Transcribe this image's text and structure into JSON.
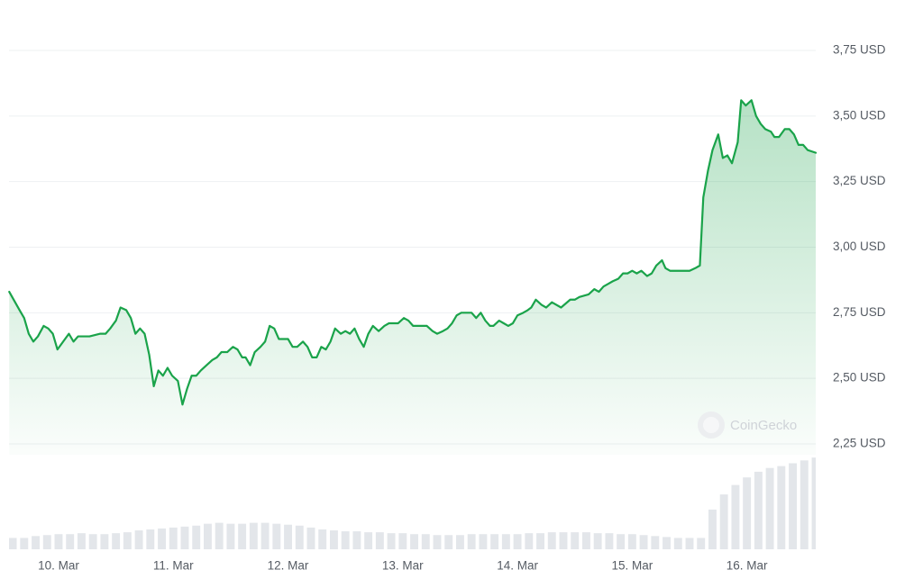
{
  "chart_data": [
    {
      "type": "line",
      "color": "#1aa34a",
      "grid": true,
      "annotation": "CoinGecko",
      "xlim": [
        9.568,
        16.6
      ],
      "ylim": [
        2.25,
        3.75
      ],
      "yticks": [
        {
          "value": 2.25,
          "label": "2,25 USD"
        },
        {
          "value": 2.5,
          "label": "2,50 USD"
        },
        {
          "value": 2.75,
          "label": "2,75 USD"
        },
        {
          "value": 3.0,
          "label": "3,00 USD"
        },
        {
          "value": 3.25,
          "label": "3,25 USD"
        },
        {
          "value": 3.5,
          "label": "3,50 USD"
        },
        {
          "value": 3.75,
          "label": "3,75 USD"
        }
      ],
      "xticks": [
        {
          "value": 10,
          "label": "10. Mar"
        },
        {
          "value": 11,
          "label": "11. Mar"
        },
        {
          "value": 12,
          "label": "12. Mar"
        },
        {
          "value": 13,
          "label": "13. Mar"
        },
        {
          "value": 14,
          "label": "14. Mar"
        },
        {
          "value": 15,
          "label": "15. Mar"
        },
        {
          "value": 16,
          "label": "16. Mar"
        }
      ],
      "x": [
        9.57,
        9.66,
        9.7,
        9.74,
        9.78,
        9.82,
        9.87,
        9.91,
        9.95,
        9.99,
        10.04,
        10.09,
        10.13,
        10.17,
        10.27,
        10.36,
        10.41,
        10.45,
        10.5,
        10.54,
        10.59,
        10.63,
        10.67,
        10.71,
        10.75,
        10.79,
        10.83,
        10.87,
        10.91,
        10.95,
        10.99,
        11.04,
        11.08,
        11.12,
        11.16,
        11.2,
        11.24,
        11.29,
        11.34,
        11.38,
        11.42,
        11.47,
        11.52,
        11.56,
        11.6,
        11.63,
        11.67,
        11.71,
        11.76,
        11.8,
        11.84,
        11.88,
        11.92,
        12.0,
        12.04,
        12.08,
        12.13,
        12.17,
        12.21,
        12.25,
        12.29,
        12.33,
        12.37,
        12.41,
        12.46,
        12.5,
        12.54,
        12.58,
        12.62,
        12.66,
        12.7,
        12.74,
        12.79,
        12.84,
        12.88,
        12.96,
        13.01,
        13.05,
        13.09,
        13.17,
        13.21,
        13.26,
        13.3,
        13.35,
        13.39,
        13.43,
        13.47,
        13.51,
        13.6,
        13.64,
        13.68,
        13.72,
        13.76,
        13.79,
        13.84,
        13.88,
        13.92,
        13.96,
        14.0,
        14.05,
        14.09,
        14.12,
        14.16,
        14.21,
        14.25,
        14.3,
        14.38,
        14.46,
        14.5,
        14.54,
        14.62,
        14.67,
        14.71,
        14.75,
        14.79,
        14.83,
        14.88,
        14.92,
        14.96,
        15.0,
        15.04,
        15.08,
        15.13,
        15.17,
        15.21,
        15.26,
        15.29,
        15.33,
        15.37,
        15.41,
        15.5,
        15.55,
        15.59,
        15.62,
        15.66,
        15.7,
        15.75,
        15.79,
        15.83,
        15.87,
        15.92,
        15.95,
        15.99,
        16.04,
        16.08,
        16.12,
        16.16,
        16.21,
        16.24,
        16.28,
        16.33,
        16.37,
        16.41,
        16.45,
        16.49,
        16.53,
        16.6
      ],
      "values": [
        2.83,
        2.76,
        2.73,
        2.67,
        2.64,
        2.66,
        2.7,
        2.69,
        2.67,
        2.61,
        2.64,
        2.67,
        2.64,
        2.66,
        2.66,
        2.67,
        2.67,
        2.69,
        2.72,
        2.77,
        2.76,
        2.73,
        2.67,
        2.69,
        2.67,
        2.59,
        2.47,
        2.53,
        2.51,
        2.54,
        2.51,
        2.49,
        2.4,
        2.46,
        2.51,
        2.51,
        2.53,
        2.55,
        2.57,
        2.58,
        2.6,
        2.6,
        2.62,
        2.61,
        2.58,
        2.58,
        2.55,
        2.6,
        2.62,
        2.64,
        2.7,
        2.69,
        2.65,
        2.65,
        2.62,
        2.62,
        2.64,
        2.62,
        2.58,
        2.58,
        2.62,
        2.61,
        2.64,
        2.69,
        2.67,
        2.68,
        2.67,
        2.69,
        2.65,
        2.62,
        2.67,
        2.7,
        2.68,
        2.7,
        2.71,
        2.71,
        2.73,
        2.72,
        2.7,
        2.7,
        2.7,
        2.68,
        2.67,
        2.68,
        2.69,
        2.71,
        2.74,
        2.75,
        2.75,
        2.73,
        2.75,
        2.72,
        2.7,
        2.7,
        2.72,
        2.71,
        2.7,
        2.71,
        2.74,
        2.75,
        2.76,
        2.77,
        2.8,
        2.78,
        2.77,
        2.79,
        2.77,
        2.8,
        2.8,
        2.81,
        2.82,
        2.84,
        2.83,
        2.85,
        2.86,
        2.87,
        2.88,
        2.9,
        2.9,
        2.91,
        2.9,
        2.91,
        2.89,
        2.9,
        2.93,
        2.95,
        2.92,
        2.91,
        2.91,
        2.91,
        2.91,
        2.92,
        2.93,
        3.19,
        3.29,
        3.37,
        3.43,
        3.34,
        3.35,
        3.32,
        3.4,
        3.56,
        3.54,
        3.56,
        3.5,
        3.47,
        3.45,
        3.44,
        3.42,
        3.42,
        3.45,
        3.45,
        3.43,
        3.39,
        3.39,
        3.37,
        3.36
      ]
    },
    {
      "type": "bar",
      "color": "#e3e6ea",
      "xlim": [
        9.568,
        16.6
      ],
      "ylim": [
        0,
        100
      ],
      "x": [
        9.6,
        9.7,
        9.8,
        9.9,
        10.0,
        10.1,
        10.2,
        10.3,
        10.4,
        10.5,
        10.6,
        10.7,
        10.8,
        10.9,
        11.0,
        11.1,
        11.2,
        11.3,
        11.4,
        11.5,
        11.6,
        11.7,
        11.8,
        11.9,
        12.0,
        12.1,
        12.2,
        12.3,
        12.4,
        12.5,
        12.6,
        12.7,
        12.8,
        12.9,
        13.0,
        13.1,
        13.2,
        13.3,
        13.4,
        13.5,
        13.6,
        13.7,
        13.8,
        13.9,
        14.0,
        14.1,
        14.2,
        14.3,
        14.4,
        14.5,
        14.6,
        14.7,
        14.8,
        14.9,
        15.0,
        15.1,
        15.2,
        15.3,
        15.4,
        15.5,
        15.6,
        15.7,
        15.8,
        15.9,
        16.0,
        16.1,
        16.2,
        16.3,
        16.4,
        16.5,
        16.6
      ],
      "values": [
        12,
        12,
        14,
        15,
        16,
        16,
        17,
        16,
        16,
        17,
        18,
        20,
        21,
        22,
        23,
        24,
        25,
        27,
        28,
        27,
        27,
        28,
        28,
        27,
        26,
        25,
        23,
        21,
        20,
        19,
        19,
        18,
        18,
        17,
        17,
        16,
        16,
        15,
        15,
        15,
        16,
        16,
        16,
        16,
        16,
        17,
        17,
        18,
        18,
        18,
        18,
        17,
        17,
        16,
        16,
        15,
        14,
        13,
        12,
        12,
        12,
        42,
        58,
        68,
        76,
        82,
        86,
        88,
        91,
        94,
        97
      ]
    }
  ]
}
